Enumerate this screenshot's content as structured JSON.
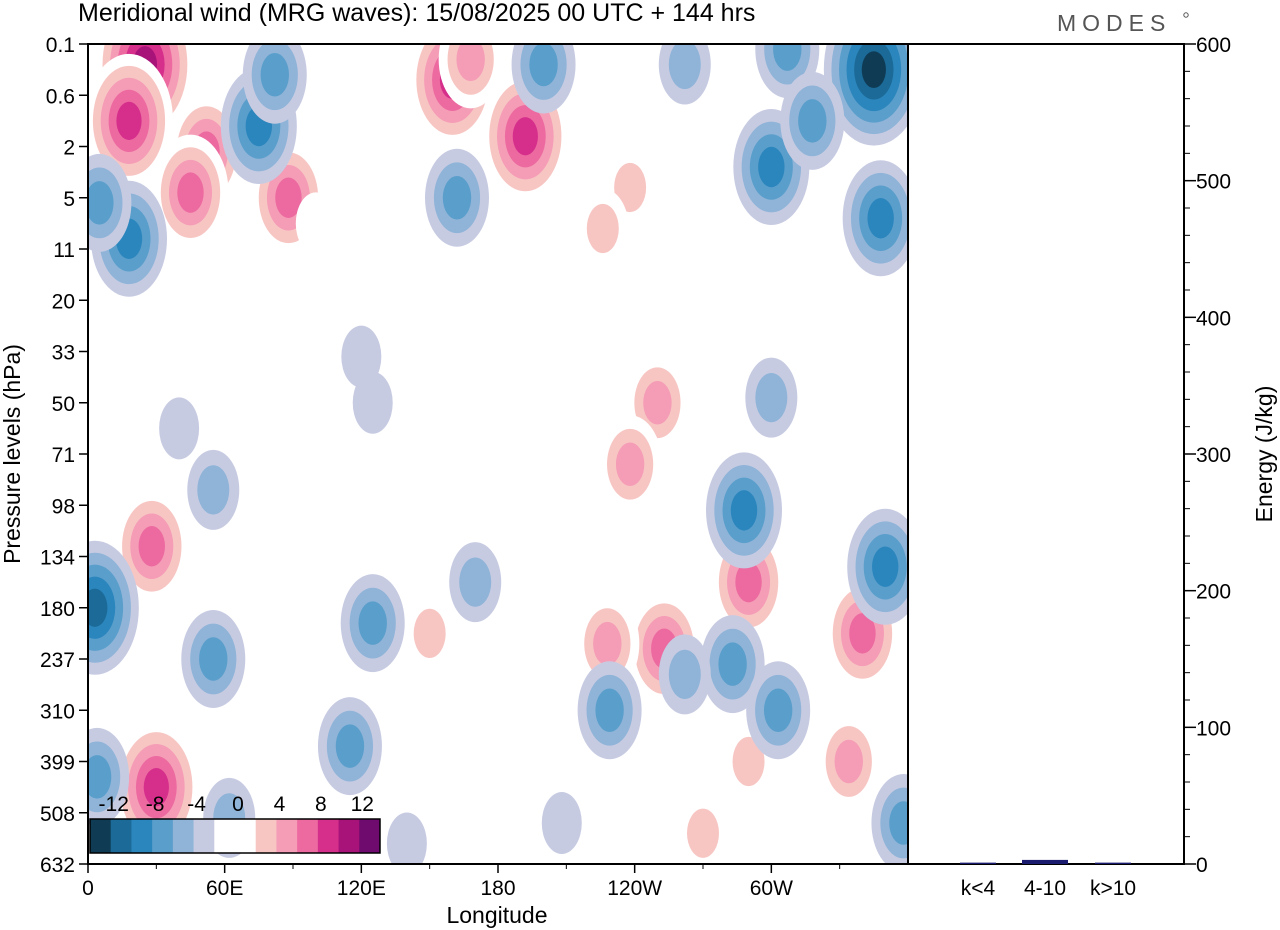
{
  "page": {
    "title": "Meridional wind (MRG waves):  15/08/2025  00 UTC  + 144 hrs",
    "brand": "MODES"
  },
  "chart_data": [
    {
      "type": "heatmap",
      "title": "Meridional wind (MRG waves)",
      "xlabel": "Longitude",
      "ylabel": "Pressure levels (hPa)",
      "x_ticks": [
        {
          "lon": 0,
          "label": "0"
        },
        {
          "lon": 60,
          "label": "60E"
        },
        {
          "lon": 120,
          "label": "120E"
        },
        {
          "lon": 180,
          "label": "180"
        },
        {
          "lon": 240,
          "label": "120W"
        },
        {
          "lon": 300,
          "label": "60W"
        }
      ],
      "xlim": [
        0,
        360
      ],
      "y_levels": [
        "0.1",
        "0.6",
        "2",
        "5",
        "11",
        "20",
        "33",
        "50",
        "71",
        "98",
        "134",
        "180",
        "237",
        "310",
        "399",
        "508",
        "632"
      ],
      "colorbar": {
        "labels": [
          "-12",
          "-8",
          "-4",
          "0",
          "4",
          "8",
          "12"
        ],
        "levels": [
          -14,
          -12,
          -10,
          -8,
          -6,
          -4,
          -2,
          0,
          2,
          4,
          6,
          8,
          10,
          12,
          14
        ],
        "colors": [
          "#0f3b55",
          "#1b6a97",
          "#2b86bd",
          "#5a9ecb",
          "#8fb4d8",
          "#c7cbe2",
          "#ffffff",
          "#ffffff",
          "#f7c6c3",
          "#f59cb6",
          "#ec6aa0",
          "#d52e8b",
          "#a8137a",
          "#6f0b6e"
        ]
      },
      "blobs": [
        {
          "lon": 25,
          "level": 0.4,
          "value": 12
        },
        {
          "lon": 18,
          "level": 1.5,
          "value": 9
        },
        {
          "lon": 52,
          "level": 2.1,
          "value": 8
        },
        {
          "lon": 88,
          "level": 3.0,
          "value": 8
        },
        {
          "lon": 45,
          "level": 2.9,
          "value": 7
        },
        {
          "lon": 160,
          "level": 0.7,
          "value": 10
        },
        {
          "lon": 192,
          "level": 1.8,
          "value": 10
        },
        {
          "lon": 168,
          "level": 0.3,
          "value": 5
        },
        {
          "lon": 238,
          "level": 2.8,
          "value": 4
        },
        {
          "lon": 226,
          "level": 3.6,
          "value": 3
        },
        {
          "lon": 265,
          "level": 0.9,
          "value": 2
        },
        {
          "lon": 340,
          "level": 2.2,
          "value": 2
        },
        {
          "lon": 100,
          "level": 3.5,
          "value": 2
        },
        {
          "lon": 250,
          "level": 7.0,
          "value": 5
        },
        {
          "lon": 238,
          "level": 8.2,
          "value": 5
        },
        {
          "lon": 90,
          "level": 7.2,
          "value": 2
        },
        {
          "lon": 325,
          "level": 5.8,
          "value": 2
        },
        {
          "lon": 28,
          "level": 9.8,
          "value": 8
        },
        {
          "lon": 290,
          "level": 10.5,
          "value": 8
        },
        {
          "lon": 340,
          "level": 11.5,
          "value": 7
        },
        {
          "lon": 253,
          "level": 11.8,
          "value": 8
        },
        {
          "lon": 228,
          "level": 11.7,
          "value": 6
        },
        {
          "lon": 150,
          "level": 11.5,
          "value": 4
        },
        {
          "lon": 30,
          "level": 14.5,
          "value": 10
        },
        {
          "lon": 334,
          "level": 14.0,
          "value": 6
        },
        {
          "lon": 95,
          "level": 12.8,
          "value": 2
        },
        {
          "lon": 118,
          "level": 14.8,
          "value": 2
        },
        {
          "lon": 197,
          "level": 12.0,
          "value": 2
        },
        {
          "lon": 290,
          "level": 14.0,
          "value": 3
        },
        {
          "lon": 270,
          "level": 15.4,
          "value": 3
        },
        {
          "lon": 185,
          "level": 15.2,
          "value": 2
        },
        {
          "lon": 75,
          "level": 9.0,
          "value": 2
        },
        {
          "lon": 307,
          "level": 0.1,
          "value": -6
        },
        {
          "lon": 345,
          "level": 0.5,
          "value": -12
        },
        {
          "lon": 348,
          "level": 3.4,
          "value": -7
        },
        {
          "lon": 300,
          "level": 2.4,
          "value": -7
        },
        {
          "lon": 200,
          "level": 0.4,
          "value": -6
        },
        {
          "lon": 262,
          "level": 0.4,
          "value": -3
        },
        {
          "lon": 75,
          "level": 1.6,
          "value": -7
        },
        {
          "lon": 82,
          "level": 0.6,
          "value": -5
        },
        {
          "lon": 162,
          "level": 3.0,
          "value": -6
        },
        {
          "lon": 18,
          "level": 3.8,
          "value": -8
        },
        {
          "lon": 5,
          "level": 3.1,
          "value": -5
        },
        {
          "lon": 318,
          "level": 1.5,
          "value": -5
        },
        {
          "lon": 120,
          "level": 6.1,
          "value": -2
        },
        {
          "lon": 125,
          "level": 7.0,
          "value": -2
        },
        {
          "lon": 300,
          "level": 6.9,
          "value": -3
        },
        {
          "lon": 55,
          "level": 8.7,
          "value": -4
        },
        {
          "lon": 40,
          "level": 7.5,
          "value": -2
        },
        {
          "lon": 288,
          "level": 9.1,
          "value": -7
        },
        {
          "lon": 350,
          "level": 10.2,
          "value": -8
        },
        {
          "lon": 3,
          "level": 11.0,
          "value": -9
        },
        {
          "lon": 125,
          "level": 11.3,
          "value": -6
        },
        {
          "lon": 115,
          "level": 13.7,
          "value": -5
        },
        {
          "lon": 55,
          "level": 12.0,
          "value": -6
        },
        {
          "lon": 283,
          "level": 12.1,
          "value": -5
        },
        {
          "lon": 303,
          "level": 13.0,
          "value": -5
        },
        {
          "lon": 262,
          "level": 12.3,
          "value": -4
        },
        {
          "lon": 229,
          "level": 13.0,
          "value": -5
        },
        {
          "lon": 4,
          "level": 14.3,
          "value": -6
        },
        {
          "lon": 62,
          "level": 15.1,
          "value": -4
        },
        {
          "lon": 358,
          "level": 15.2,
          "value": -5
        },
        {
          "lon": 170,
          "level": 10.5,
          "value": -3
        },
        {
          "lon": 208,
          "level": 15.2,
          "value": -2
        },
        {
          "lon": 140,
          "level": 15.6,
          "value": -2
        }
      ]
    },
    {
      "type": "bar",
      "ylabel": "Energy (J/kg)",
      "ylim": [
        0,
        600
      ],
      "y_ticks": [
        0,
        100,
        200,
        300,
        400,
        500,
        600
      ],
      "categories": [
        "k<4",
        "4-10",
        "k>10"
      ],
      "values": [
        1,
        3,
        1
      ],
      "bar_color": "#1a1a6e"
    }
  ]
}
